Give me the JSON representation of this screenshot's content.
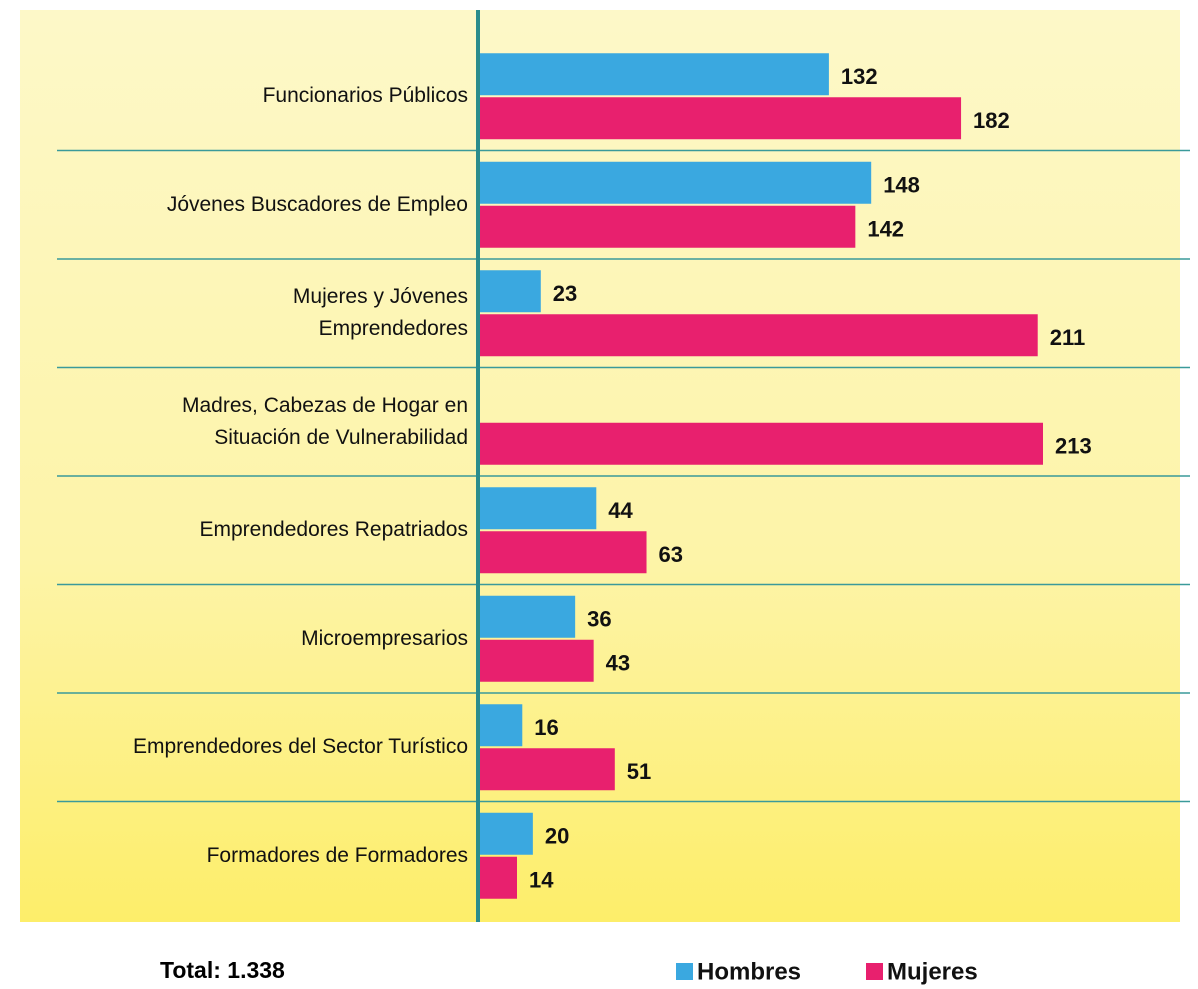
{
  "chart_data": {
    "type": "hbar",
    "categories": [
      "Funcionarios Públicos",
      "Jóvenes Buscadores de Empleo",
      "Mujeres y Jóvenes\nEmprendedores",
      "Madres, Cabezas de Hogar en\nSituación de Vulnerabilidad",
      "Emprendedores Repatriados",
      "Microempresarios",
      "Emprendedores del Sector Turístico",
      "Formadores de Formadores"
    ],
    "series": [
      {
        "name": "Hombres",
        "color": "#3aa8e0",
        "values": [
          132,
          148,
          23,
          null,
          44,
          36,
          16,
          20
        ]
      },
      {
        "name": "Mujeres",
        "color": "#e8206e",
        "values": [
          182,
          142,
          211,
          213,
          63,
          43,
          51,
          14
        ]
      }
    ],
    "total_label": "Total: 1.338",
    "data_labels": true
  }
}
